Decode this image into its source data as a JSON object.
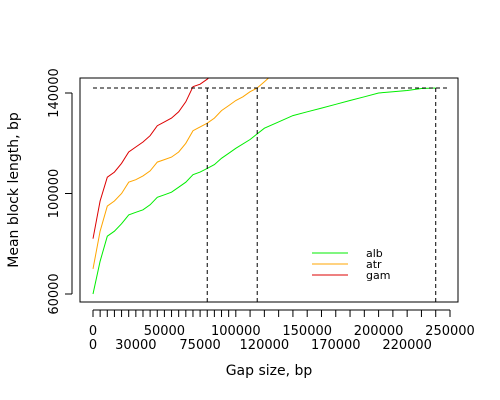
{
  "chart_data": {
    "type": "line",
    "xlabel": "Gap size, bp",
    "ylabel": "Mean block length, bp",
    "xlim": [
      0,
      250000
    ],
    "ylim": [
      60000,
      145000
    ],
    "x_ticks_major": [
      0,
      50000,
      100000,
      150000,
      200000,
      250000
    ],
    "x_ticks_minor": [
      0,
      30000,
      75000,
      120000,
      170000,
      220000
    ],
    "x_tick_labels_major": [
      "0",
      "50000",
      "100000",
      "150000",
      "200000",
      "250000"
    ],
    "x_tick_labels_minor": [
      "0",
      "30000",
      "75000",
      "120000",
      "170000",
      "220000"
    ],
    "x_tick_marks": [
      0,
      5000,
      10000,
      15000,
      20000,
      25000,
      30000,
      35000,
      40000,
      45000,
      50000,
      55000,
      60000,
      65000,
      70000,
      75000,
      80000,
      85000,
      90000,
      95000,
      100000,
      110000,
      120000,
      130000,
      140000,
      150000,
      160000,
      170000,
      180000,
      190000,
      200000,
      210000,
      220000,
      230000,
      240000,
      250000
    ],
    "y_ticks": [
      60000,
      100000,
      140000
    ],
    "y_tick_labels": [
      "60000",
      "100000",
      "140000"
    ],
    "legend": {
      "position": "bottom-right",
      "entries": [
        {
          "label": "alb",
          "color": "#00ee00"
        },
        {
          "label": "atr",
          "color": "#ffa500"
        },
        {
          "label": "gam",
          "color": "#dd0000"
        }
      ]
    },
    "reference_lines": {
      "horizontal_y": 142000,
      "vertical_x": [
        80000,
        115000,
        240000
      ]
    },
    "series": [
      {
        "name": "alb",
        "color": "#00ee00",
        "x": [
          0,
          5000,
          10000,
          15000,
          20000,
          25000,
          30000,
          35000,
          40000,
          45000,
          50000,
          55000,
          60000,
          65000,
          70000,
          75000,
          80000,
          85000,
          90000,
          95000,
          100000,
          110000,
          120000,
          130000,
          140000,
          150000,
          160000,
          170000,
          180000,
          190000,
          200000,
          210000,
          220000,
          230000,
          240000
        ],
        "y": [
          60000,
          73000,
          83000,
          85000,
          88000,
          91500,
          92500,
          93500,
          95500,
          98500,
          99500,
          100500,
          102500,
          104500,
          107500,
          108500,
          110000,
          111500,
          114000,
          116000,
          118000,
          121500,
          126000,
          128500,
          131000,
          132500,
          134000,
          135500,
          137000,
          138500,
          140000,
          140500,
          141000,
          141800,
          142000
        ]
      },
      {
        "name": "atr",
        "color": "#ffa500",
        "x": [
          0,
          5000,
          10000,
          15000,
          20000,
          25000,
          30000,
          35000,
          40000,
          45000,
          50000,
          55000,
          60000,
          65000,
          70000,
          75000,
          80000,
          85000,
          90000,
          95000,
          100000,
          105000,
          110000,
          115000,
          120000,
          125000
        ],
        "y": [
          70000,
          85000,
          95000,
          97000,
          100000,
          104500,
          105500,
          107000,
          109000,
          112500,
          113500,
          114500,
          116500,
          120000,
          125000,
          126500,
          128000,
          130000,
          133000,
          135000,
          137000,
          138500,
          140500,
          142000,
          144500,
          147000
        ]
      },
      {
        "name": "gam",
        "color": "#dd0000",
        "x": [
          0,
          5000,
          10000,
          15000,
          20000,
          25000,
          30000,
          35000,
          40000,
          45000,
          50000,
          55000,
          60000,
          65000,
          70000,
          75000,
          80000,
          85000,
          90000
        ],
        "y": [
          82000,
          97000,
          106500,
          108500,
          112000,
          116500,
          118500,
          120500,
          123000,
          127000,
          128500,
          130000,
          132500,
          136500,
          142500,
          143500,
          145500,
          148000,
          151000
        ]
      }
    ]
  }
}
